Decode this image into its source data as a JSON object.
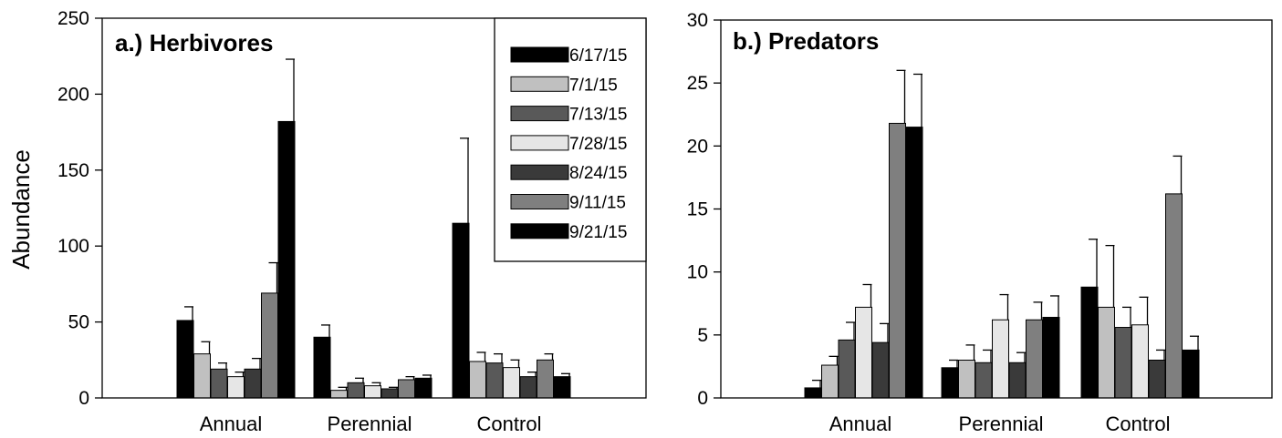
{
  "chart_data": [
    {
      "type": "bar",
      "title": "a.) Herbivores",
      "ylabel": "Abundance",
      "xlabel": "",
      "ylim": [
        0,
        250
      ],
      "yticks": [
        0,
        50,
        100,
        150,
        200,
        250
      ],
      "categories": [
        "Annual",
        "Perennial",
        "Control"
      ],
      "legend_position": "top-right",
      "series": [
        {
          "name": "6/17/15",
          "color": "#000000",
          "values": [
            51,
            40,
            115
          ],
          "errors": [
            9,
            8,
            56
          ]
        },
        {
          "name": "7/1/15",
          "color": "#c0c0c0",
          "values": [
            29,
            5,
            24
          ],
          "errors": [
            8,
            2,
            6
          ]
        },
        {
          "name": "7/13/15",
          "color": "#595959",
          "values": [
            19,
            10,
            23
          ],
          "errors": [
            4,
            3,
            6
          ]
        },
        {
          "name": "7/28/15",
          "color": "#e6e6e6",
          "values": [
            14,
            8,
            20
          ],
          "errors": [
            3,
            2,
            5
          ]
        },
        {
          "name": "8/24/15",
          "color": "#3a3a3a",
          "values": [
            19,
            6,
            14
          ],
          "errors": [
            7,
            1,
            3
          ]
        },
        {
          "name": "9/11/15",
          "color": "#7f7f7f",
          "values": [
            69,
            12,
            25
          ],
          "errors": [
            20,
            2,
            4
          ]
        },
        {
          "name": "9/21/15",
          "color": "#000000",
          "values": [
            182,
            13,
            14
          ],
          "errors": [
            41,
            2,
            2
          ]
        }
      ]
    },
    {
      "type": "bar",
      "title": "b.) Predators",
      "ylabel": "",
      "xlabel": "",
      "ylim": [
        0,
        30
      ],
      "yticks": [
        0,
        5,
        10,
        15,
        20,
        25,
        30
      ],
      "categories": [
        "Annual",
        "Perennial",
        "Control"
      ],
      "series": [
        {
          "name": "6/17/15",
          "color": "#000000",
          "values": [
            0.8,
            2.4,
            8.8
          ],
          "errors": [
            0.6,
            0.6,
            3.8
          ]
        },
        {
          "name": "7/1/15",
          "color": "#c0c0c0",
          "values": [
            2.6,
            3.0,
            7.2
          ],
          "errors": [
            0.7,
            1.2,
            4.9
          ]
        },
        {
          "name": "7/13/15",
          "color": "#595959",
          "values": [
            4.6,
            2.8,
            5.6
          ],
          "errors": [
            1.4,
            1.0,
            1.6
          ]
        },
        {
          "name": "7/28/15",
          "color": "#e6e6e6",
          "values": [
            7.2,
            6.2,
            5.8
          ],
          "errors": [
            1.8,
            2.0,
            2.2
          ]
        },
        {
          "name": "8/24/15",
          "color": "#3a3a3a",
          "values": [
            4.4,
            2.8,
            3.0
          ],
          "errors": [
            1.5,
            0.8,
            0.8
          ]
        },
        {
          "name": "9/11/15",
          "color": "#7f7f7f",
          "values": [
            21.8,
            6.2,
            16.2
          ],
          "errors": [
            4.2,
            1.4,
            3.0
          ]
        },
        {
          "name": "9/21/15",
          "color": "#000000",
          "values": [
            21.5,
            6.4,
            3.8
          ],
          "errors": [
            4.2,
            1.7,
            1.1
          ]
        }
      ]
    }
  ]
}
